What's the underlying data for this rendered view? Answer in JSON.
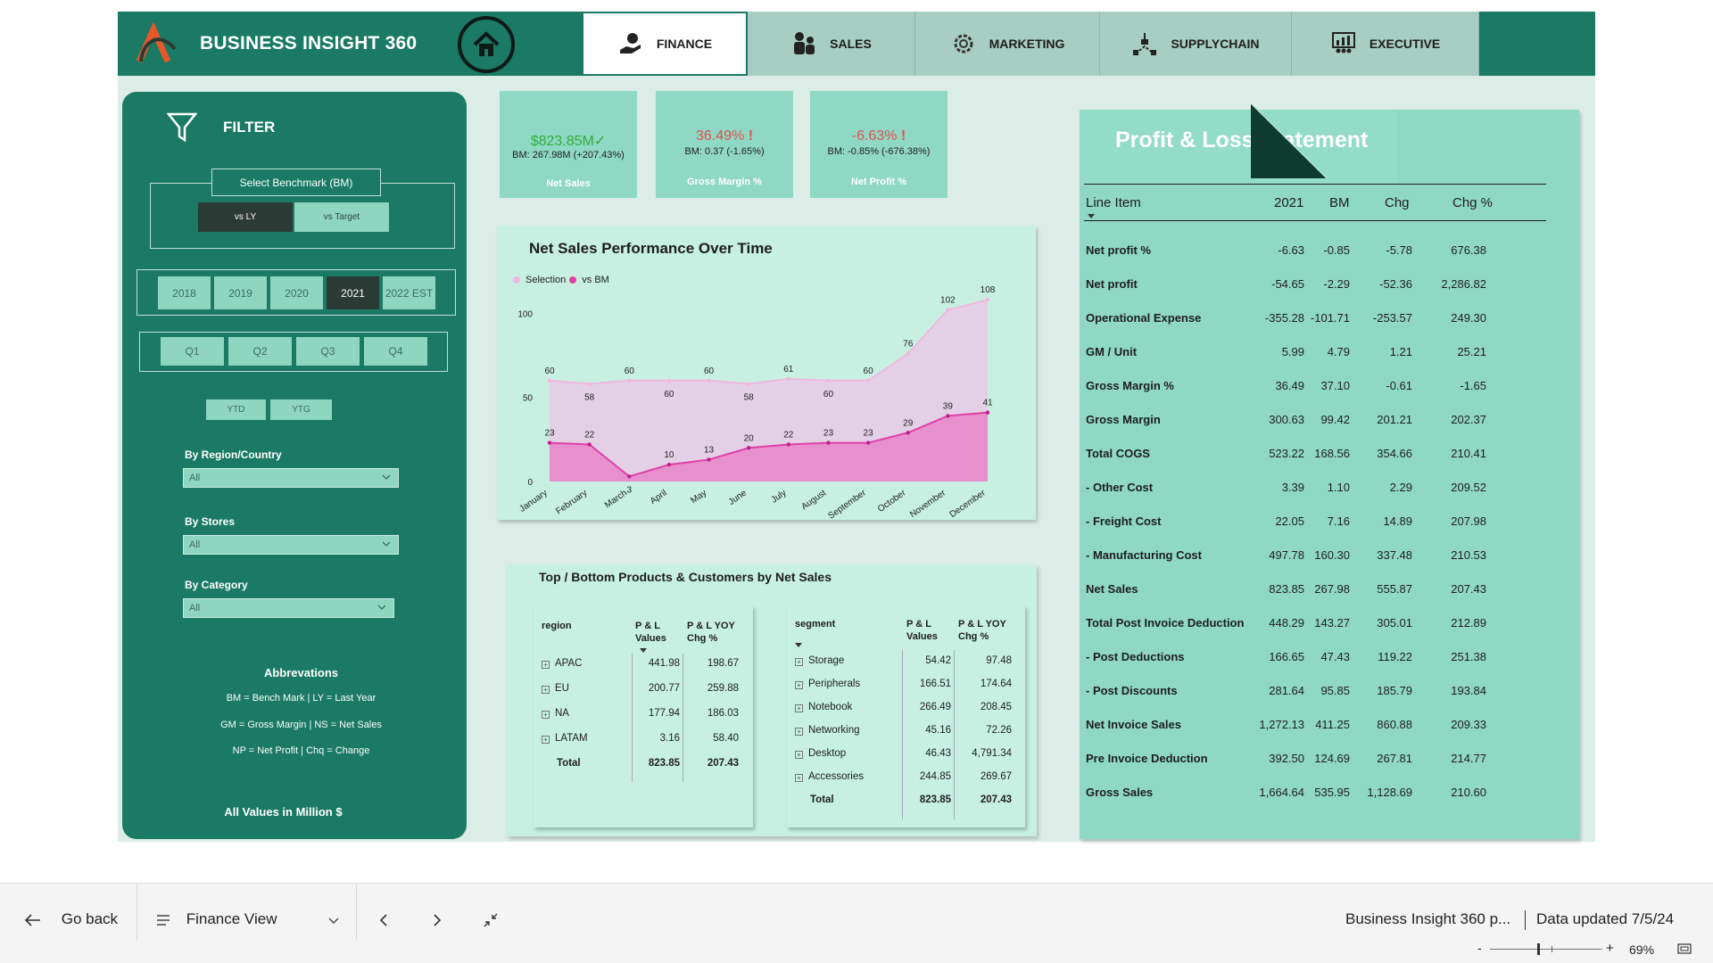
{
  "app": {
    "brand": "BUSINESS INSIGHT 360",
    "tabs": [
      {
        "label": "FINANCE",
        "active": true
      },
      {
        "label": "SALES",
        "active": false
      },
      {
        "label": "MARKETING",
        "active": false
      },
      {
        "label": "SUPPLYCHAIN",
        "active": false
      },
      {
        "label": "EXECUTIVE",
        "active": false
      }
    ]
  },
  "filter": {
    "title": "FILTER",
    "benchmark_label": "Select Benchmark (BM)",
    "benchmark_options": [
      "vs LY",
      "vs Target"
    ],
    "benchmark_selected": "vs LY",
    "years": [
      "2018",
      "2019",
      "2020",
      "2021",
      "2022 EST"
    ],
    "year_selected": "2021",
    "quarters": [
      "Q1",
      "Q2",
      "Q3",
      "Q4"
    ],
    "ytd": [
      "YTD",
      "YTG"
    ],
    "dropdowns": [
      {
        "label": "By Region/Country",
        "value": "All"
      },
      {
        "label": "By Stores",
        "value": "All"
      },
      {
        "label": "By Category",
        "value": "All"
      }
    ],
    "abbr_title": "Abbrevations",
    "abbr_lines": [
      "BM = Bench Mark | LY = Last Year",
      "GM = Gross Margin | NS = Net Sales",
      "NP = Net Profit | Chq = Change"
    ],
    "footer_note": "All Values in Million $"
  },
  "kpis": [
    {
      "value": "$823.85M",
      "bm": "BM: 267.98M (+207.43%)",
      "label": "Net Sales",
      "color": "#2cae3c",
      "mark": "check"
    },
    {
      "value": "36.49%",
      "bm": "BM: 0.37 (-1.65%)",
      "label": "Gross Margin %",
      "color": "#e05050",
      "mark": "!"
    },
    {
      "value": "-6.63%",
      "bm": "BM: -0.85% (-676.38%)",
      "label": "Net Profit %",
      "color": "#e05050",
      "mark": "!"
    }
  ],
  "chart_data": {
    "type": "area",
    "title": "Net Sales Performance Over Time",
    "legend": [
      "Selection",
      "vs BM"
    ],
    "legend_position": "top-left",
    "categories": [
      "January",
      "February",
      "March",
      "April",
      "May",
      "June",
      "July",
      "August",
      "September",
      "October",
      "November",
      "December"
    ],
    "series": [
      {
        "name": "Selection",
        "values": [
          60,
          58,
          60,
          60,
          60,
          58,
          61,
          60,
          60,
          76,
          102,
          108
        ],
        "color": "#f0b8dc"
      },
      {
        "name": "vs BM",
        "values": [
          23,
          22,
          3,
          10,
          13,
          20,
          22,
          23,
          23,
          29,
          39,
          41
        ],
        "color": "#e040a8"
      }
    ],
    "y_ticks": [
      "0",
      "50",
      "100"
    ],
    "ylim": [
      0,
      115
    ],
    "grid": false
  },
  "tables": {
    "title": "Top / Bottom Products & Customers by Net Sales",
    "region": {
      "headers": [
        "region",
        "P & L Values",
        "P & L YOY Chg %"
      ],
      "rows": [
        [
          "APAC",
          "441.98",
          "198.67"
        ],
        [
          "EU",
          "200.77",
          "259.88"
        ],
        [
          "NA",
          "177.94",
          "186.03"
        ],
        [
          "LATAM",
          "3.16",
          "58.40"
        ]
      ],
      "total": [
        "Total",
        "823.85",
        "207.43"
      ]
    },
    "segment": {
      "headers": [
        "segment",
        "P & L Values",
        "P & L YOY Chg %"
      ],
      "rows": [
        [
          "Storage",
          "54.42",
          "97.48"
        ],
        [
          "Peripherals",
          "166.51",
          "174.64"
        ],
        [
          "Notebook",
          "266.49",
          "208.45"
        ],
        [
          "Networking",
          "45.16",
          "72.26"
        ],
        [
          "Desktop",
          "46.43",
          "4,791.34"
        ],
        [
          "Accessories",
          "244.85",
          "269.67"
        ]
      ],
      "total": [
        "Total",
        "823.85",
        "207.43"
      ]
    }
  },
  "pl": {
    "title": "Profit & Loss Statement",
    "headers": [
      "Line Item",
      "2021",
      "BM",
      "Chg",
      "Chg %"
    ],
    "rows": [
      [
        "Net profit %",
        "-6.63",
        "-0.85",
        "-5.78",
        "676.38"
      ],
      [
        "Net profit",
        "-54.65",
        "-2.29",
        "-52.36",
        "2,286.82"
      ],
      [
        "Operational Expense",
        "-355.28",
        "-101.71",
        "-253.57",
        "249.30"
      ],
      [
        "GM / Unit",
        "5.99",
        "4.79",
        "1.21",
        "25.21"
      ],
      [
        "Gross Margin %",
        "36.49",
        "37.10",
        "-0.61",
        "-1.65"
      ],
      [
        "Gross Margin",
        "300.63",
        "99.42",
        "201.21",
        "202.37"
      ],
      [
        "Total COGS",
        "523.22",
        "168.56",
        "354.66",
        "210.41"
      ],
      [
        "- Other Cost",
        "3.39",
        "1.10",
        "2.29",
        "209.52"
      ],
      [
        "- Freight Cost",
        "22.05",
        "7.16",
        "14.89",
        "207.98"
      ],
      [
        "- Manufacturing Cost",
        "497.78",
        "160.30",
        "337.48",
        "210.53"
      ],
      [
        "Net Sales",
        "823.85",
        "267.98",
        "555.87",
        "207.43"
      ],
      [
        "Total Post Invoice Deduction",
        "448.29",
        "143.27",
        "305.01",
        "212.89"
      ],
      [
        "- Post Deductions",
        "166.65",
        "47.43",
        "119.22",
        "251.38"
      ],
      [
        "- Post Discounts",
        "281.64",
        "95.85",
        "185.79",
        "193.84"
      ],
      [
        "Net Invoice Sales",
        "1,272.13",
        "411.25",
        "860.88",
        "209.33"
      ],
      [
        "Pre Invoice Deduction",
        "392.50",
        "124.69",
        "267.81",
        "214.77"
      ],
      [
        "Gross Sales",
        "1,664.64",
        "535.95",
        "1,128.69",
        "210.60"
      ]
    ]
  },
  "footer": {
    "go_back": "Go back",
    "page_select": "Finance View",
    "report_name": "Business Insight 360 p...",
    "data_updated": "Data updated 7/5/24",
    "zoom_minus": "-",
    "zoom_plus": "+",
    "zoom": "69%",
    "zoom_level": 0.42
  }
}
